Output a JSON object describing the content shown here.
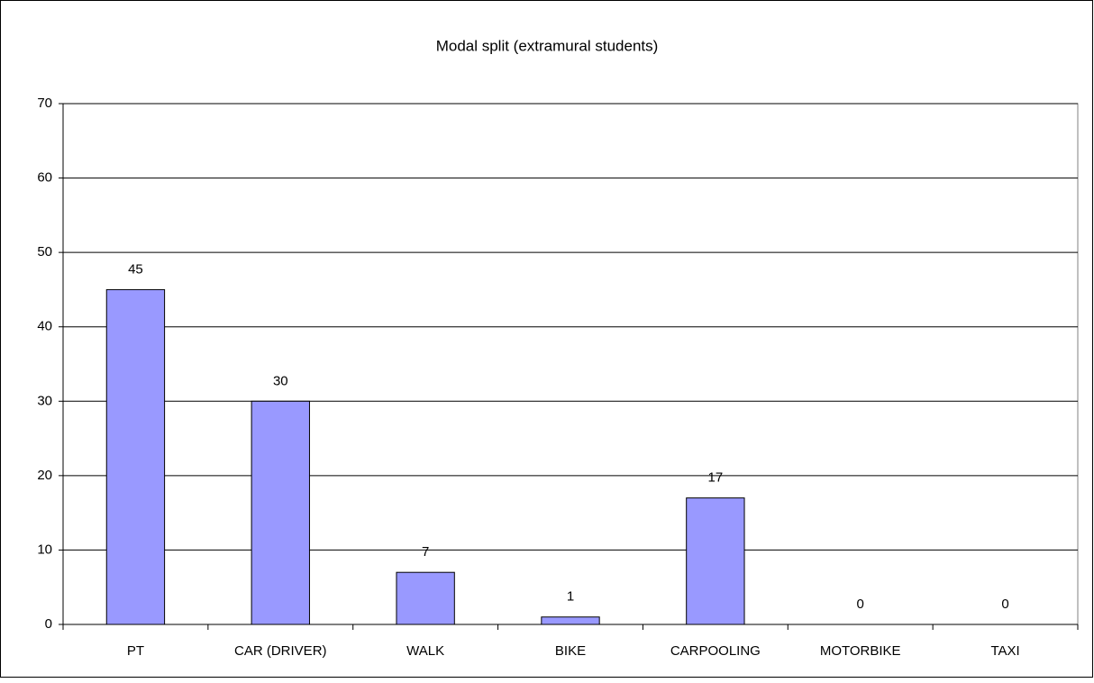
{
  "chart_data": {
    "type": "bar",
    "title": "Modal split (extramural students)",
    "categories": [
      "PT",
      "CAR (DRIVER)",
      "WALK",
      "BIKE",
      "CARPOOLING",
      "MOTORBIKE",
      "TAXI"
    ],
    "values": [
      45,
      30,
      7,
      1,
      17,
      0,
      0
    ],
    "color": "#9999ff",
    "ylim": [
      0,
      70
    ],
    "yticks": [
      0,
      10,
      20,
      30,
      40,
      50,
      60,
      70
    ],
    "grid": true
  }
}
